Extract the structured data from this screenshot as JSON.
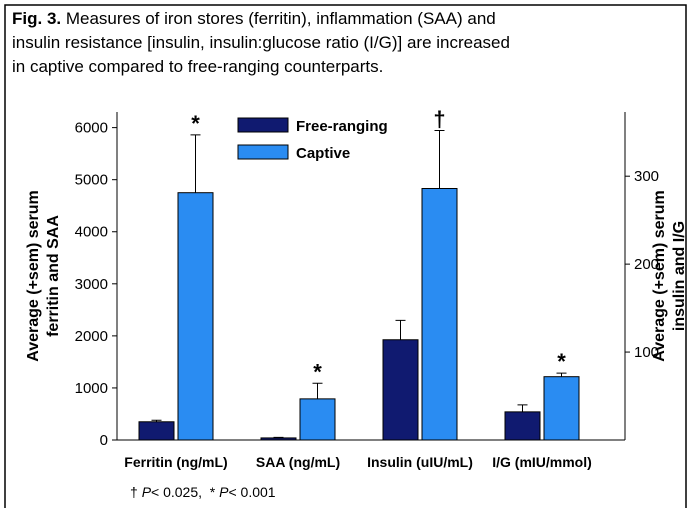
{
  "chart_data": {
    "type": "bar",
    "title_label": "Fig. 3.",
    "title_lines": [
      "Measures of iron stores (ferritin), inflammation (SAA) and",
      "insulin resistance [insulin, insulin:glucose ratio (I/G)] are increased",
      "in captive compared to free-ranging counterparts."
    ],
    "categories": [
      "Ferritin (ng/mL)",
      "SAA (ng/mL)",
      "Insulin (uIU/mL)",
      "I/G (mIU/mmol)"
    ],
    "category_axis": [
      "y",
      "y",
      "y2",
      "y2"
    ],
    "series": [
      {
        "name": "Free-ranging",
        "color": "#101a70",
        "values": [
          350,
          40,
          114,
          32
        ],
        "errors": [
          30,
          10,
          22,
          8
        ]
      },
      {
        "name": "Captive",
        "color": "#2a8cf2",
        "values": [
          4750,
          790,
          286,
          72
        ],
        "errors": [
          1110,
          300,
          66,
          4
        ],
        "markers": [
          "*",
          "*",
          "†",
          "*"
        ]
      }
    ],
    "ylabel": [
      "Average (+sem) serum",
      "ferritin and SAA"
    ],
    "y2label": [
      "Average (+sem) serum",
      "insulin and I/G"
    ],
    "ylim": [
      0,
      6300
    ],
    "yticks": [
      0,
      1000,
      2000,
      3000,
      4000,
      5000,
      6000
    ],
    "y2lim": [
      0,
      373
    ],
    "y2ticks": [
      100,
      200,
      300
    ],
    "footnote": [
      "† ",
      "P",
      "< 0.025,  * ",
      "P",
      "< 0.001"
    ]
  }
}
